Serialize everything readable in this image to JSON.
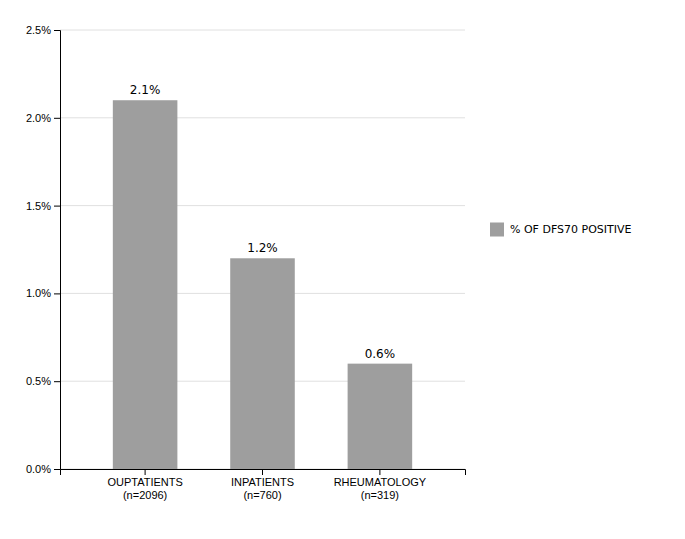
{
  "chart_data": {
    "type": "bar",
    "categories": [
      "OUPTATIENTS\n(n=2096)",
      "INPATIENTS\n(n=760)",
      "RHEUMATOLOGY\n(n=319)"
    ],
    "series": [
      {
        "name": "% OF DFS70 POSITIVE",
        "color": "#9e9e9e",
        "values": [
          2.1,
          1.2,
          0.6
        ],
        "value_labels": [
          "2.1%",
          "1.2%",
          "0.6%"
        ]
      }
    ],
    "data_labels": true,
    "ylim": [
      0,
      2.5
    ],
    "yticks": [
      {
        "value": 0.0,
        "label": "0.0%"
      },
      {
        "value": 0.5,
        "label": "0.5%"
      },
      {
        "value": 1.0,
        "label": "1.0%"
      },
      {
        "value": 1.5,
        "label": "1.5%"
      },
      {
        "value": 2.0,
        "label": "2.0%"
      },
      {
        "value": 2.5,
        "label": "2.5%"
      }
    ],
    "grid": true,
    "legend": "right"
  }
}
